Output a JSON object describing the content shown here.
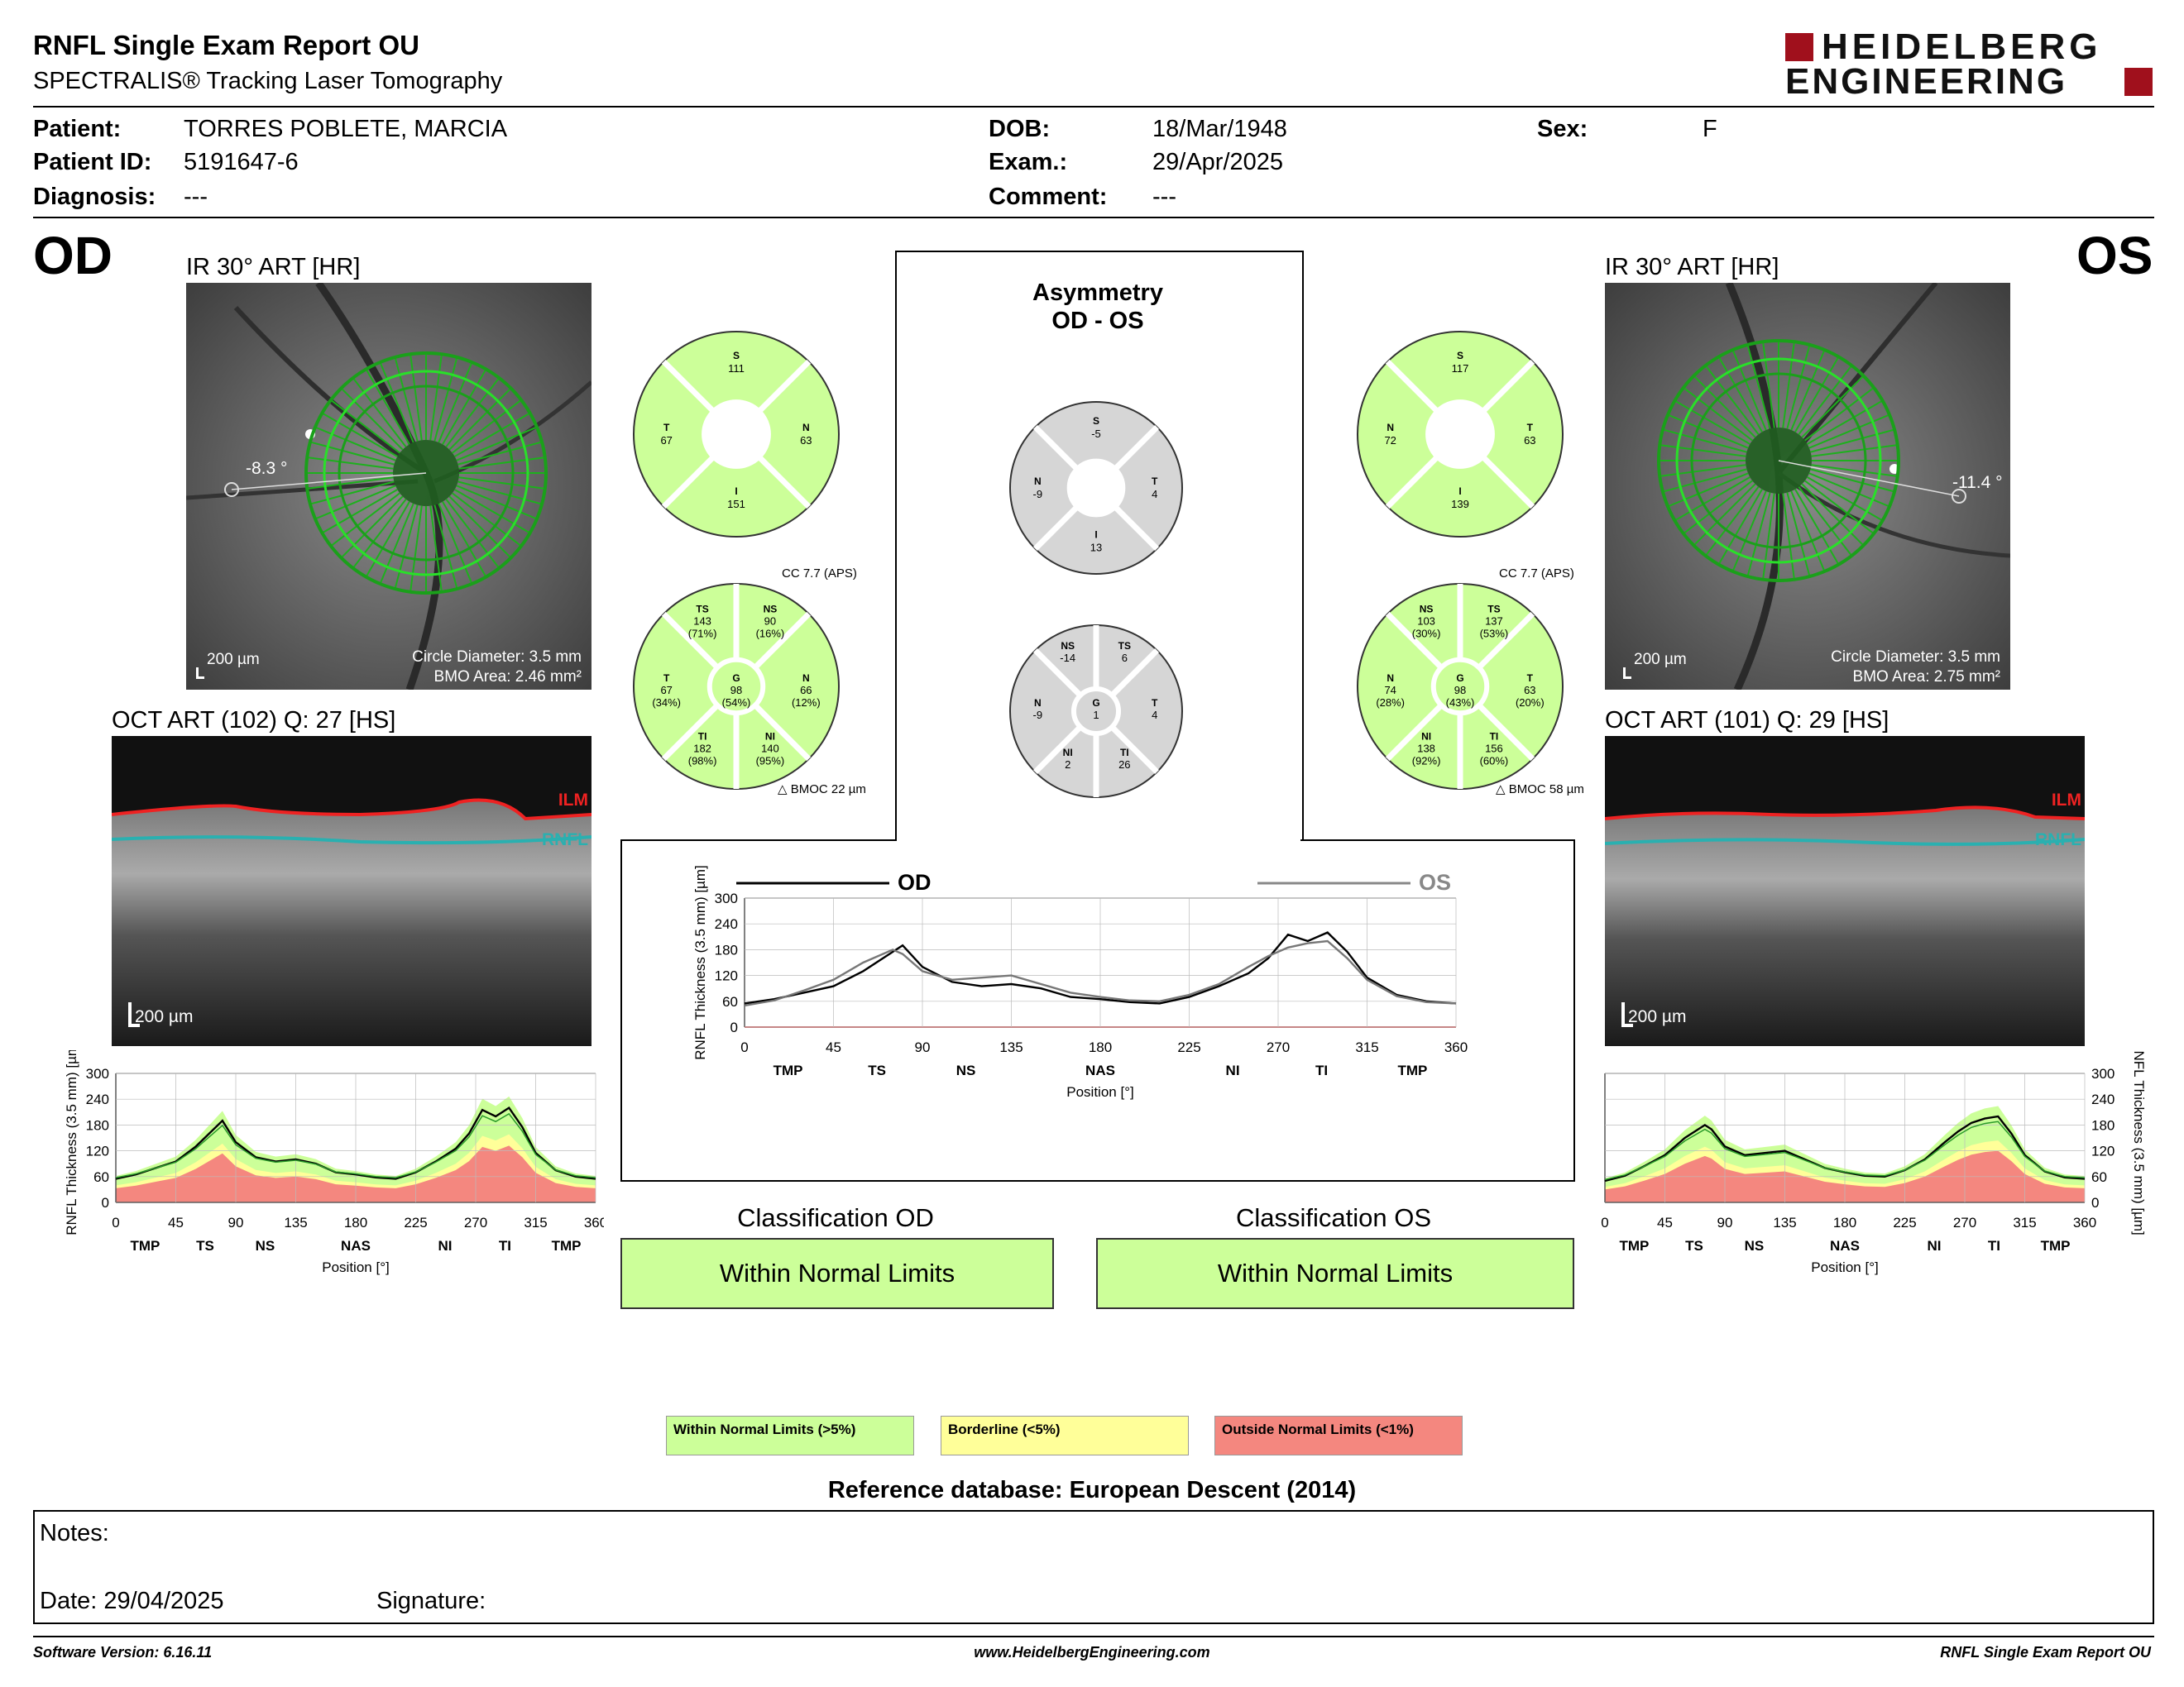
{
  "header": {
    "title": "RNFL Single Exam Report OU",
    "subtitle": "SPECTRALIS® Tracking Laser Tomography",
    "logo_line1": "HEIDELBERG",
    "logo_line2": "ENGINEERING"
  },
  "patient": {
    "patient_label": "Patient:",
    "patient_value": "TORRES POBLETE, MARCIA",
    "id_label": "Patient ID:",
    "id_value": "5191647-6",
    "diagnosis_label": "Diagnosis:",
    "diagnosis_value": "---",
    "dob_label": "DOB:",
    "dob_value": "18/Mar/1948",
    "exam_label": "Exam.:",
    "exam_value": "29/Apr/2025",
    "comment_label": "Comment:",
    "comment_value": "---",
    "sex_label": "Sex:",
    "sex_value": "F"
  },
  "od": {
    "eye": "OD",
    "ir_title": "IR 30° ART [HR]",
    "angle": "-8.3 °",
    "scale": "200 µm",
    "circle_diameter": "Circle Diameter: 3.5 mm",
    "bmo_area": "BMO Area: 2.46 mm²",
    "oct_title": "OCT ART (102) Q: 27 [HS]",
    "oct_scale": "200 µm",
    "ilm": "ILM",
    "rnfl": "RNFL",
    "cc": "CC 7.7 (APS)",
    "bmoc": "BMOC 22 µm",
    "sectors4": {
      "S": "111",
      "T": "67",
      "N": "63",
      "I": "151"
    },
    "sectors6": {
      "TS": {
        "v": "143",
        "p": "(71%)"
      },
      "NS": {
        "v": "90",
        "p": "(16%)"
      },
      "T": {
        "v": "67",
        "p": "(34%)"
      },
      "G": {
        "v": "98",
        "p": "(54%)"
      },
      "N": {
        "v": "66",
        "p": "(12%)"
      },
      "TI": {
        "v": "182",
        "p": "(98%)"
      },
      "NI": {
        "v": "140",
        "p": "(95%)"
      }
    },
    "classification_title": "Classification OD",
    "classification": "Within Normal Limits"
  },
  "os": {
    "eye": "OS",
    "ir_title": "IR 30° ART [HR]",
    "angle": "-11.4 °",
    "scale": "200 µm",
    "circle_diameter": "Circle Diameter: 3.5 mm",
    "bmo_area": "BMO Area: 2.75 mm²",
    "oct_title": "OCT ART (101) Q: 29 [HS]",
    "oct_scale": "200 µm",
    "ilm": "ILM",
    "rnfl": "RNFL",
    "cc": "CC 7.7 (APS)",
    "bmoc": "BMOC 58 µm",
    "sectors4": {
      "S": "117",
      "N": "72",
      "T": "63",
      "I": "139"
    },
    "sectors6": {
      "NS": {
        "v": "103",
        "p": "(30%)"
      },
      "TS": {
        "v": "137",
        "p": "(53%)"
      },
      "N": {
        "v": "74",
        "p": "(28%)"
      },
      "G": {
        "v": "98",
        "p": "(43%)"
      },
      "T": {
        "v": "63",
        "p": "(20%)"
      },
      "NI": {
        "v": "138",
        "p": "(92%)"
      },
      "TI": {
        "v": "156",
        "p": "(60%)"
      }
    },
    "classification_title": "Classification OS",
    "classification": "Within Normal Limits"
  },
  "asymmetry": {
    "title1": "Asymmetry",
    "title2": "OD - OS",
    "sectors4": {
      "S": "-5",
      "N": "-9",
      "T": "4",
      "I": "13"
    },
    "sectors6": {
      "NS": "-14",
      "TS": "6",
      "N": "-9",
      "G": "1",
      "T": "4",
      "NI": "2",
      "TI": "26"
    }
  },
  "chart_data": [
    {
      "type": "line",
      "name": "od_rnfl_profile",
      "x": [
        0,
        15,
        30,
        45,
        60,
        75,
        80,
        90,
        105,
        120,
        135,
        150,
        165,
        180,
        195,
        210,
        225,
        240,
        255,
        265,
        275,
        285,
        295,
        305,
        315,
        330,
        345,
        360
      ],
      "series": [
        {
          "name": "OD",
          "values": [
            55,
            65,
            80,
            95,
            130,
            175,
            190,
            140,
            105,
            95,
            100,
            90,
            70,
            65,
            58,
            55,
            70,
            95,
            125,
            160,
            215,
            200,
            220,
            175,
            115,
            75,
            60,
            55
          ]
        }
      ],
      "ylim": [
        0,
        300
      ],
      "yticks": [
        0,
        60,
        120,
        180,
        240,
        300
      ],
      "xticks": [
        0,
        45,
        90,
        135,
        180,
        225,
        270,
        315,
        360
      ],
      "sector_labels": [
        "TMP",
        "TS",
        "NS",
        "NAS",
        "NI",
        "TI",
        "TMP"
      ],
      "ylabel": "RNFL Thickness (3.5 mm) [µm]",
      "xlabel": "Position [°]"
    },
    {
      "type": "line",
      "name": "os_rnfl_profile",
      "x": [
        0,
        15,
        30,
        45,
        60,
        75,
        80,
        90,
        105,
        120,
        135,
        150,
        165,
        180,
        195,
        210,
        225,
        240,
        255,
        265,
        275,
        285,
        295,
        305,
        315,
        330,
        345,
        360
      ],
      "series": [
        {
          "name": "OS",
          "values": [
            50,
            62,
            85,
            110,
            150,
            180,
            170,
            130,
            110,
            115,
            120,
            100,
            80,
            70,
            62,
            60,
            75,
            100,
            140,
            165,
            185,
            195,
            200,
            160,
            110,
            72,
            58,
            55
          ]
        }
      ],
      "ylim": [
        0,
        300
      ],
      "yticks": [
        0,
        60,
        120,
        180,
        240,
        300
      ],
      "xticks": [
        0,
        45,
        90,
        135,
        180,
        225,
        270,
        315,
        360
      ],
      "sector_labels": [
        "TMP",
        "TS",
        "NS",
        "NAS",
        "NI",
        "TI",
        "TMP"
      ],
      "ylabel": "RNFL Thickness (3.5 mm) [µm]",
      "xlabel": "Position [°]"
    },
    {
      "type": "line",
      "name": "od_os_comparison",
      "x": [
        0,
        15,
        30,
        45,
        60,
        75,
        80,
        90,
        105,
        120,
        135,
        150,
        165,
        180,
        195,
        210,
        225,
        240,
        255,
        265,
        275,
        285,
        295,
        305,
        315,
        330,
        345,
        360
      ],
      "series": [
        {
          "name": "OD",
          "values": [
            55,
            65,
            80,
            95,
            130,
            175,
            190,
            140,
            105,
            95,
            100,
            90,
            70,
            65,
            58,
            55,
            70,
            95,
            125,
            160,
            215,
            200,
            220,
            175,
            115,
            75,
            60,
            55
          ]
        },
        {
          "name": "OS",
          "values": [
            50,
            62,
            85,
            110,
            150,
            180,
            170,
            130,
            110,
            115,
            120,
            100,
            80,
            70,
            62,
            60,
            75,
            100,
            140,
            165,
            185,
            195,
            200,
            160,
            110,
            72,
            58,
            55
          ]
        }
      ],
      "ylim": [
        0,
        300
      ],
      "yticks": [
        0,
        60,
        120,
        180,
        240,
        300
      ],
      "xticks": [
        0,
        45,
        90,
        135,
        180,
        225,
        270,
        315,
        360
      ],
      "sector_labels": [
        "TMP",
        "TS",
        "NS",
        "NAS",
        "NI",
        "TI",
        "TMP"
      ],
      "ylabel": "RNFL Thickness (3.5 mm) [µm]",
      "xlabel": "Position [°]"
    }
  ],
  "legend": {
    "wnl": "Within Normal Limits (>5%)",
    "bl": "Borderline (<5%)",
    "onl": "Outside Normal Limits (<1%)",
    "colors": {
      "wnl": "#ccff99",
      "bl": "#ffff99",
      "onl": "#f4877f"
    }
  },
  "reference": "Reference database: European Descent (2014)",
  "notes": {
    "label": "Notes:",
    "date": "Date: 29/04/2025",
    "signature": "Signature:"
  },
  "footer": {
    "software": "Software Version: 6.16.11",
    "website": "www.HeidelbergEngineering.com",
    "report": "RNFL Single Exam Report OU"
  }
}
